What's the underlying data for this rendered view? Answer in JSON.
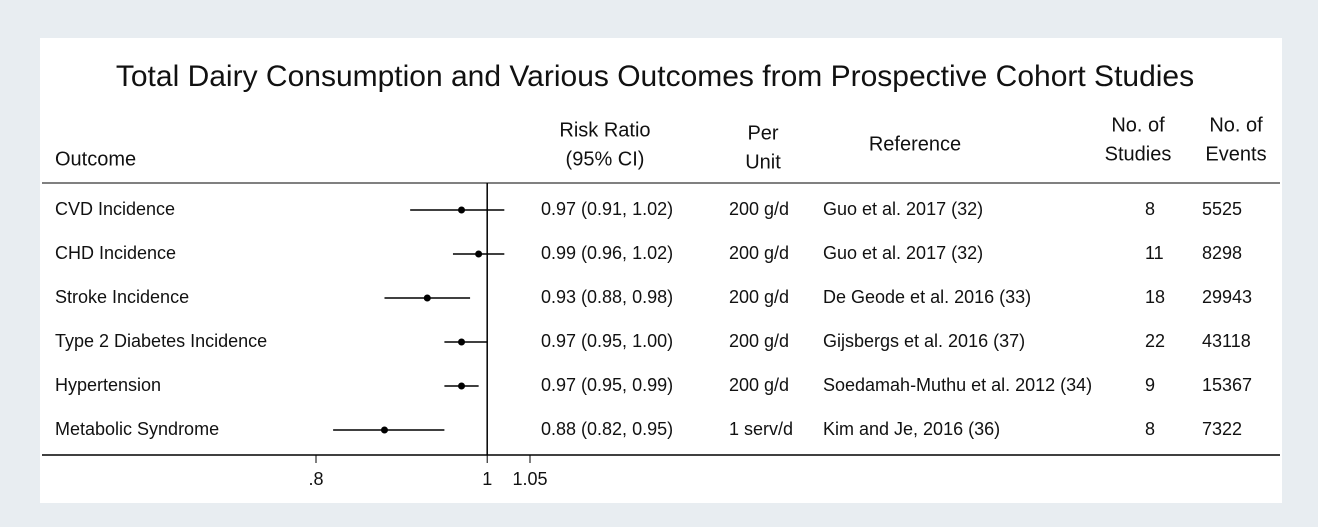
{
  "chart_data": {
    "type": "forest",
    "title": "Total Dairy Consumption and Various Outcomes from Prospective Cohort Studies",
    "headers": {
      "outcome": "Outcome",
      "rr": [
        "Risk Ratio",
        "(95% CI)"
      ],
      "unit": [
        "Per",
        "Unit"
      ],
      "reference": "Reference",
      "studies": [
        "No. of",
        "Studies"
      ],
      "events": [
        "No. of",
        "Events"
      ]
    },
    "categories": [
      "CVD Incidence",
      "CHD Incidence",
      "Stroke Incidence",
      "Type 2 Diabetes Incidence",
      "Hypertension",
      "Metabolic Syndrome"
    ],
    "values": [
      0.97,
      0.99,
      0.93,
      0.97,
      0.97,
      0.88
    ],
    "ci_low": [
      0.91,
      0.96,
      0.88,
      0.95,
      0.95,
      0.82
    ],
    "ci_high": [
      1.02,
      1.02,
      0.98,
      1.0,
      0.99,
      0.95
    ],
    "value_labels": [
      "0.97 (0.91, 1.02)",
      "0.99 (0.96, 1.02)",
      "0.93 (0.88, 0.98)",
      "0.97 (0.95, 1.00)",
      "0.97 (0.95, 0.99)",
      "0.88 (0.82, 0.95)"
    ],
    "per_unit": [
      "200 g/d",
      "200 g/d",
      "200 g/d",
      "200 g/d",
      "200 g/d",
      "1 serv/d"
    ],
    "reference": [
      "Guo et al. 2017 (32)",
      "Guo et al. 2017 (32)",
      "De Geode et al. 2016 (33)",
      "Gijsbergs et al. 2016 (37)",
      "Soedamah-Muthu et al. 2012 (34)",
      "Kim and Je, 2016 (36)"
    ],
    "studies": [
      8,
      11,
      18,
      22,
      9,
      8
    ],
    "events": [
      5525,
      8298,
      29943,
      43118,
      15367,
      7322
    ],
    "xlim": [
      0.8,
      1.05
    ],
    "xticks": [
      {
        "value": 0.8,
        "label": ".8"
      },
      1,
      1.05
    ],
    "ref_line": 1,
    "color": "#000000"
  }
}
